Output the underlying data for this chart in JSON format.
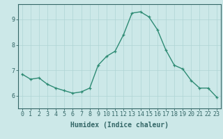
{
  "xlabel": "Humidex (Indice chaleur)",
  "ylabel": "",
  "x_values": [
    0,
    1,
    2,
    3,
    4,
    5,
    6,
    7,
    8,
    9,
    10,
    11,
    12,
    13,
    14,
    15,
    16,
    17,
    18,
    19,
    20,
    21,
    22,
    23
  ],
  "y_values": [
    6.85,
    6.65,
    6.7,
    6.45,
    6.3,
    6.2,
    6.1,
    6.15,
    6.3,
    7.2,
    7.55,
    7.75,
    8.4,
    9.25,
    9.3,
    9.1,
    8.6,
    7.8,
    7.2,
    7.05,
    6.6,
    6.3,
    6.3,
    5.95
  ],
  "ylim": [
    5.5,
    9.6
  ],
  "yticks": [
    6,
    7,
    8,
    9
  ],
  "line_color": "#2e8b74",
  "marker": "+",
  "bg_color": "#cce8e8",
  "grid_color": "#aed4d4",
  "axis_color": "#336666",
  "tick_color": "#336666",
  "label_color": "#336666",
  "fontsize_axis": 6,
  "fontsize_label": 7
}
